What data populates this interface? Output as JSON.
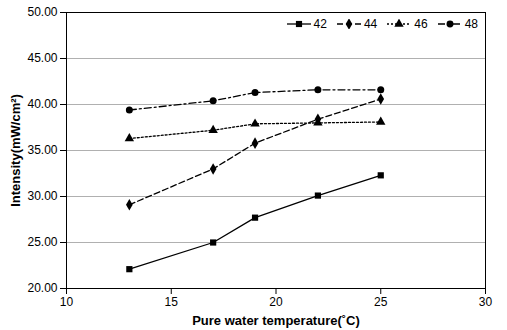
{
  "chart_data": {
    "type": "line",
    "x_label": "Pure water temperature(˚C)",
    "y_label": "Intensity(mW/cm²)",
    "x": [
      13,
      17,
      19,
      22,
      25
    ],
    "series": [
      {
        "name": "42",
        "color": "#000000",
        "marker": "square",
        "line_style": "solid",
        "values": [
          22.1,
          25.0,
          27.7,
          30.1,
          32.3
        ]
      },
      {
        "name": "44",
        "color": "#000000",
        "marker": "diamond",
        "line_style": "dashed",
        "values": [
          29.1,
          33.0,
          35.8,
          38.4,
          40.6
        ]
      },
      {
        "name": "46",
        "color": "#000000",
        "marker": "triangle",
        "line_style": "dotted",
        "values": [
          36.3,
          37.2,
          37.9,
          38.0,
          38.1
        ]
      },
      {
        "name": "48",
        "color": "#000000",
        "marker": "circle",
        "line_style": "dashdot",
        "values": [
          39.4,
          40.4,
          41.3,
          41.6,
          41.6
        ]
      }
    ],
    "xlim": [
      10,
      30
    ],
    "xticks": [
      10,
      15,
      20,
      25,
      30
    ],
    "ylim": [
      20,
      50
    ],
    "yticks": [
      {
        "value": 20,
        "label": "20.00"
      },
      {
        "value": 25,
        "label": "25.00"
      },
      {
        "value": 30,
        "label": "30.00"
      },
      {
        "value": 35,
        "label": "35.00"
      },
      {
        "value": 40,
        "label": "40.00"
      },
      {
        "value": 45,
        "label": "45.00"
      },
      {
        "value": 50,
        "label": "50.00"
      }
    ],
    "grid": true,
    "legend": "top-right"
  }
}
